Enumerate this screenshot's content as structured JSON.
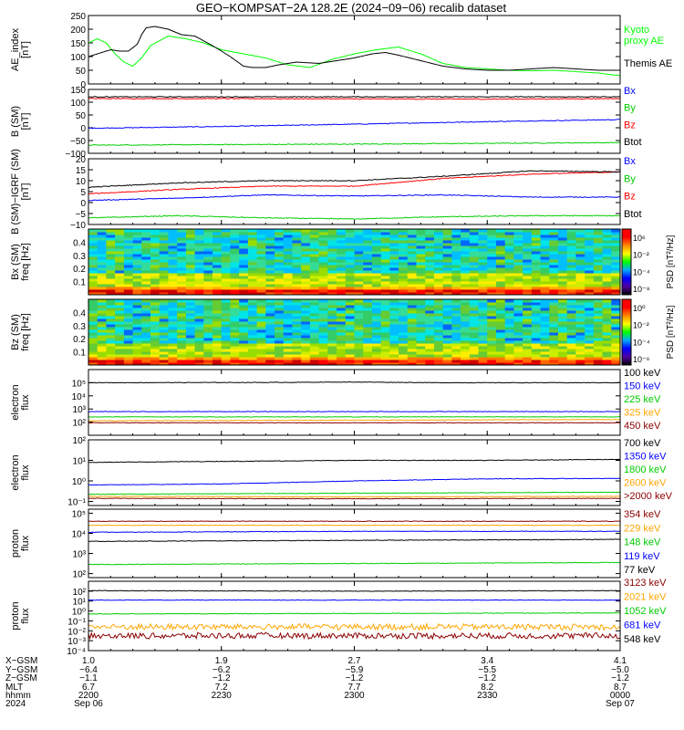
{
  "title": "GEO−KOMPSAT−2A 128.2E (2024−09−06) recalib dataset",
  "chart_data": [
    {
      "id": "ae",
      "type": "line",
      "ylabel": [
        "AE_index",
        "[nT]"
      ],
      "ylim": [
        0,
        250
      ],
      "yticks": [
        {
          "v": 0,
          "t": "0"
        },
        {
          "v": 50,
          "t": "50"
        },
        {
          "v": 100,
          "t": "100"
        },
        {
          "v": 150,
          "t": "150"
        },
        {
          "v": 200,
          "t": "200"
        },
        {
          "v": 250,
          "t": "250"
        }
      ],
      "series": [
        {
          "name": "Kyoto proxy AE",
          "color": "#00ff00",
          "label_lines": [
            "Kyoto",
            "proxy AE"
          ],
          "x": [
            0,
            2,
            4,
            6,
            8,
            10,
            12,
            14,
            18,
            22,
            26,
            30,
            35,
            40,
            45,
            50,
            55,
            60,
            65,
            70,
            75,
            80,
            85,
            90,
            95,
            100,
            105,
            110,
            115,
            120
          ],
          "y": [
            150,
            165,
            150,
            110,
            80,
            65,
            95,
            140,
            175,
            165,
            150,
            125,
            110,
            95,
            70,
            60,
            90,
            110,
            125,
            135,
            110,
            75,
            60,
            55,
            50,
            48,
            50,
            45,
            40,
            30
          ]
        },
        {
          "name": "Themis AE",
          "color": "#000000",
          "label_lines": [
            "Themis AE"
          ],
          "x": [
            0,
            3,
            5,
            7,
            9,
            11,
            12,
            13,
            15,
            18,
            21,
            24,
            28,
            32,
            35,
            37,
            40,
            43,
            47,
            52,
            56,
            60,
            64,
            67,
            70,
            75,
            80,
            85,
            90,
            95,
            100,
            105,
            110,
            115,
            120
          ],
          "y": [
            100,
            115,
            125,
            120,
            120,
            145,
            180,
            205,
            210,
            200,
            180,
            175,
            140,
            100,
            65,
            60,
            60,
            70,
            80,
            75,
            85,
            95,
            110,
            115,
            105,
            85,
            65,
            55,
            50,
            50,
            55,
            60,
            55,
            50,
            50
          ]
        }
      ]
    },
    {
      "id": "b",
      "type": "line",
      "ylabel": [
        "B (SM)",
        "[nT]"
      ],
      "ylim": [
        -100,
        150
      ],
      "yticks": [
        {
          "v": -100,
          "t": "−100"
        },
        {
          "v": -50,
          "t": "−50"
        },
        {
          "v": 0,
          "t": "0"
        },
        {
          "v": 50,
          "t": "50"
        },
        {
          "v": 100,
          "t": "100"
        },
        {
          "v": 150,
          "t": "150"
        }
      ],
      "series": [
        {
          "name": "Bx",
          "color": "#0000ff",
          "x": [
            0,
            30,
            60,
            90,
            120
          ],
          "y": [
            -2,
            5,
            14,
            24,
            32
          ]
        },
        {
          "name": "By",
          "color": "#00cc00",
          "x": [
            0,
            30,
            60,
            90,
            120
          ],
          "y": [
            -68,
            -66,
            -64,
            -61,
            -58
          ]
        },
        {
          "name": "Bz",
          "color": "#ff0000",
          "x": [
            0,
            30,
            60,
            90,
            120
          ],
          "y": [
            114,
            114,
            113,
            112,
            114
          ]
        },
        {
          "name": "Btot",
          "color": "#000000",
          "x": [
            0,
            30,
            60,
            90,
            120
          ],
          "y": [
            121,
            121,
            121,
            121,
            121
          ]
        }
      ]
    },
    {
      "id": "bres",
      "type": "line",
      "ylabel": [
        "B (SM)−IGRF (SM)",
        "[nT]"
      ],
      "ylim": [
        -10,
        20
      ],
      "yticks": [
        {
          "v": -10,
          "t": "−10"
        },
        {
          "v": -5,
          "t": "−5"
        },
        {
          "v": 0,
          "t": "0"
        },
        {
          "v": 5,
          "t": "5"
        },
        {
          "v": 10,
          "t": "10"
        },
        {
          "v": 15,
          "t": "15"
        },
        {
          "v": 20,
          "t": "20"
        }
      ],
      "series": [
        {
          "name": "Bx",
          "color": "#0000ff",
          "x": [
            0,
            20,
            40,
            60,
            80,
            100,
            120
          ],
          "y": [
            1,
            2,
            3.5,
            3,
            3.5,
            2.5,
            2.5
          ]
        },
        {
          "name": "By",
          "color": "#00cc00",
          "x": [
            0,
            20,
            40,
            60,
            80,
            100,
            120
          ],
          "y": [
            -7,
            -6,
            -7,
            -7.5,
            -6.5,
            -6,
            -6
          ]
        },
        {
          "name": "Bz",
          "color": "#ff0000",
          "x": [
            0,
            20,
            40,
            60,
            80,
            100,
            120
          ],
          "y": [
            4,
            6,
            7.5,
            7.5,
            11,
            13,
            14
          ]
        },
        {
          "name": "Btot",
          "color": "#000000",
          "x": [
            0,
            20,
            40,
            60,
            80,
            100,
            120
          ],
          "y": [
            7,
            9,
            10,
            10,
            12,
            14.5,
            14
          ]
        }
      ]
    },
    {
      "id": "bxspec",
      "type": "heatmap",
      "ylabel": [
        "Bx (SM)",
        "freq [Hz]"
      ],
      "ylim": [
        0.0,
        0.5
      ],
      "yticks": [
        {
          "v": 0.1,
          "t": "0.1"
        },
        {
          "v": 0.2,
          "t": "0.2"
        },
        {
          "v": 0.3,
          "t": "0.3"
        },
        {
          "v": 0.4,
          "t": "0.4"
        }
      ],
      "colorbar": {
        "label": "PSD [nT²/Hz]",
        "ticks": [
          "10⁶",
          "10⁻²",
          "10⁻⁴",
          "10⁻⁸"
        ]
      }
    },
    {
      "id": "bzspec",
      "type": "heatmap",
      "ylabel": [
        "Bz (SM)",
        "freq [Hz]"
      ],
      "ylim": [
        0.0,
        0.5
      ],
      "yticks": [
        {
          "v": 0.1,
          "t": "0.1"
        },
        {
          "v": 0.2,
          "t": "0.2"
        },
        {
          "v": 0.3,
          "t": "0.3"
        },
        {
          "v": 0.4,
          "t": "0.4"
        }
      ],
      "colorbar": {
        "label": "PSD [nT²/Hz]",
        "ticks": [
          "10⁰",
          "10⁻²",
          "10⁻⁴",
          "10⁻⁶"
        ]
      }
    },
    {
      "id": "elo",
      "type": "line",
      "log": true,
      "ylabel": [
        "electron",
        "flux"
      ],
      "ylim": [
        1,
        6
      ],
      "yticks": [
        {
          "v": 2,
          "t": "10²"
        },
        {
          "v": 3,
          "t": "10³"
        },
        {
          "v": 4,
          "t": "10⁴"
        },
        {
          "v": 5,
          "t": "10⁵"
        }
      ],
      "series": [
        {
          "name": "100 keV",
          "color": "#000000",
          "x": [
            0,
            40,
            60,
            80,
            120
          ],
          "y": [
            5.0,
            5.02,
            5.05,
            5.0,
            5.0
          ]
        },
        {
          "name": "150 keV",
          "color": "#0000ff",
          "x": [
            0,
            60,
            120
          ],
          "y": [
            2.8,
            2.8,
            2.8
          ]
        },
        {
          "name": "225 keV",
          "color": "#00cc00",
          "x": [
            0,
            60,
            120
          ],
          "y": [
            2.4,
            2.4,
            2.4
          ]
        },
        {
          "name": "325 keV",
          "color": "#ffa500",
          "x": [
            0,
            60,
            120
          ],
          "y": [
            2.1,
            2.15,
            2.2
          ]
        },
        {
          "name": "450 keV",
          "color": "#8b0000",
          "x": [
            0,
            60,
            120
          ],
          "y": [
            1.95,
            1.95,
            1.95
          ]
        }
      ]
    },
    {
      "id": "ehi",
      "type": "line",
      "log": true,
      "ylabel": [
        "electron",
        "flux"
      ],
      "ylim": [
        -1.2,
        2
      ],
      "yticks": [
        {
          "v": -1,
          "t": "10⁻¹"
        },
        {
          "v": 0,
          "t": "10⁰"
        },
        {
          "v": 1,
          "t": "10¹"
        },
        {
          "v": 2,
          "t": "10²"
        }
      ],
      "series": [
        {
          "name": "700 keV",
          "color": "#000000",
          "x": [
            0,
            30,
            60,
            90,
            120
          ],
          "y": [
            0.9,
            0.95,
            1.0,
            1.0,
            1.05
          ]
        },
        {
          "name": "1350 keV",
          "color": "#0000ff",
          "x": [
            0,
            30,
            60,
            90,
            120
          ],
          "y": [
            -0.2,
            -0.15,
            0.0,
            0.1,
            0.12
          ]
        },
        {
          "name": "1800 keV",
          "color": "#00cc00",
          "x": [
            0,
            60,
            120
          ],
          "y": [
            -0.65,
            -0.6,
            -0.55
          ]
        },
        {
          "name": "2600 keV",
          "color": "#ffa500",
          "x": [
            0,
            60,
            120
          ],
          "y": [
            -0.75,
            -0.78,
            -0.75
          ]
        },
        {
          "name": ">2000 keV",
          "color": "#8b0000",
          "x": [
            0,
            60,
            120
          ],
          "y": [
            -0.85,
            -0.87,
            -0.85
          ]
        }
      ]
    },
    {
      "id": "plo",
      "type": "line",
      "log": true,
      "ylabel": [
        "proton",
        "flux"
      ],
      "ylim": [
        1.8,
        5.2
      ],
      "yticks": [
        {
          "v": 2,
          "t": "10²"
        },
        {
          "v": 3,
          "t": "10³"
        },
        {
          "v": 4,
          "t": "10⁴"
        },
        {
          "v": 5,
          "t": "10⁵"
        }
      ],
      "series": [
        {
          "name": "354 keV",
          "color": "#8b0000",
          "x": [
            0,
            60,
            120
          ],
          "y": [
            4.6,
            4.6,
            4.6
          ]
        },
        {
          "name": "229 keV",
          "color": "#ffa500",
          "x": [
            0,
            60,
            120
          ],
          "y": [
            4.4,
            4.4,
            4.4
          ]
        },
        {
          "name": "148 keV",
          "color": "#00cc00",
          "x": [
            0,
            60,
            120
          ],
          "y": [
            2.45,
            2.5,
            2.55
          ]
        },
        {
          "name": "119 keV",
          "color": "#0000ff",
          "x": [
            0,
            60,
            120
          ],
          "y": [
            4.05,
            4.1,
            4.1
          ]
        },
        {
          "name": "77 keV",
          "color": "#000000",
          "x": [
            0,
            60,
            120
          ],
          "y": [
            3.6,
            3.65,
            3.7
          ]
        }
      ]
    },
    {
      "id": "phi",
      "type": "line",
      "log": true,
      "ylabel": [
        "proton",
        "flux"
      ],
      "ylim": [
        -4,
        3
      ],
      "yticks": [
        {
          "v": -4,
          "t": "10⁻⁴"
        },
        {
          "v": -3,
          "t": "10⁻³"
        },
        {
          "v": -2,
          "t": "10⁻²"
        },
        {
          "v": -1,
          "t": "10⁻¹"
        },
        {
          "v": 0,
          "t": "10⁰"
        },
        {
          "v": 1,
          "t": "10¹"
        },
        {
          "v": 2,
          "t": "10²"
        }
      ],
      "series": [
        {
          "name": "3123 keV",
          "color": "#8b0000",
          "x": [
            0,
            60,
            120
          ],
          "y": [
            -2.5,
            -2.5,
            -2.5
          ]
        },
        {
          "name": "2021 keV",
          "color": "#ffa500",
          "x": [
            0,
            60,
            120
          ],
          "y": [
            -1.6,
            -1.6,
            -1.6
          ]
        },
        {
          "name": "1052 keV",
          "color": "#00cc00",
          "x": [
            0,
            60,
            120
          ],
          "y": [
            -0.3,
            -0.25,
            -0.2
          ]
        },
        {
          "name": "681 keV",
          "color": "#0000ff",
          "x": [
            0,
            60,
            120
          ],
          "y": [
            1.1,
            1.1,
            1.1
          ]
        },
        {
          "name": "548 keV",
          "color": "#000000",
          "x": [
            0,
            60,
            120
          ],
          "y": [
            2.05,
            2.0,
            2.05
          ]
        }
      ]
    }
  ],
  "xaxis": {
    "row_labels": [
      "X−GSM",
      "Y−GSM",
      "Z−GSM",
      "MLT",
      "hhmm",
      "2024"
    ],
    "ticks": [
      {
        "x": 0,
        "rows": [
          "1.0",
          "−6.4",
          "−1.1",
          "6.7",
          "2200",
          "Sep 06"
        ]
      },
      {
        "x": 30,
        "rows": [
          "1.9",
          "−6.2",
          "−1.2",
          "7.2",
          "2230",
          ""
        ]
      },
      {
        "x": 60,
        "rows": [
          "2.7",
          "−5.9",
          "−1.2",
          "7.7",
          "2300",
          ""
        ]
      },
      {
        "x": 90,
        "rows": [
          "3.4",
          "−5.5",
          "−1.2",
          "8.2",
          "2330",
          ""
        ]
      },
      {
        "x": 120,
        "rows": [
          "4.1",
          "−5.0",
          "−1.2",
          "8.7",
          "0000",
          "Sep 07"
        ]
      }
    ]
  }
}
